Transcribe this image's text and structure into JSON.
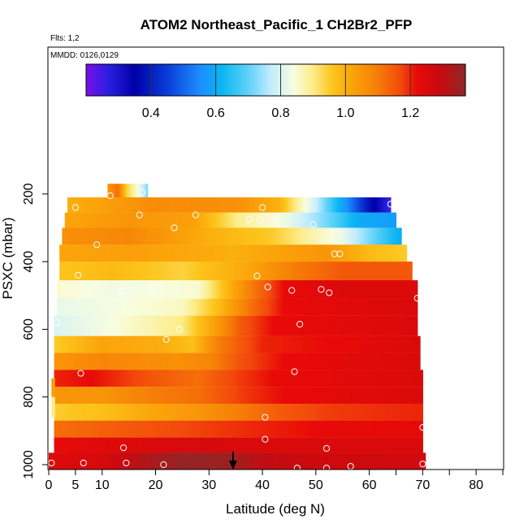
{
  "chart_data": {
    "type": "heatmap",
    "title": "ATOM2 Northeast_Pacific_1 CH2Br2_PFP",
    "flights_label": "Flts: 1,2",
    "dates_label": "MMDD: 0126,0129",
    "xlabel": "Latitude (deg N)",
    "ylabel": "PSXC (mbar)",
    "xlim": [
      0,
      85
    ],
    "ylim": [
      1000,
      100
    ],
    "x_ticks": [
      0,
      5,
      10,
      20,
      30,
      40,
      50,
      60,
      70,
      80
    ],
    "x_tick_labels": [
      "0",
      "5",
      "10",
      "20",
      "30",
      "40",
      "50",
      "60",
      "70",
      "80"
    ],
    "y_ticks": [
      200,
      400,
      600,
      800,
      1000
    ],
    "y_tick_labels": [
      "200",
      "400",
      "600",
      "800",
      "1000"
    ],
    "colorbar": {
      "range": [
        0.2,
        1.37
      ],
      "ticks": [
        0.4,
        0.6,
        0.8,
        1.0,
        1.2
      ],
      "tick_labels": [
        "0.4",
        "0.6",
        "0.8",
        "1.0",
        "1.2"
      ]
    },
    "arrow_latitude": 34.5,
    "layers": [
      {
        "p0": 170,
        "p1": 215,
        "x0": 11,
        "x1": 18.5,
        "stops": [
          [
            11,
            1.05
          ],
          [
            13,
            1.12
          ],
          [
            14.5,
            0.95
          ],
          [
            16.5,
            0.85
          ],
          [
            18.5,
            0.72
          ]
        ]
      },
      {
        "p0": 210,
        "p1": 255,
        "x0": 3.5,
        "x1": 64,
        "stops": [
          [
            3.5,
            1.0
          ],
          [
            20,
            1.07
          ],
          [
            35,
            1.06
          ],
          [
            43,
            1.0
          ],
          [
            50,
            0.78
          ],
          [
            56,
            0.55
          ],
          [
            60,
            0.38
          ],
          [
            64,
            0.25
          ]
        ]
      },
      {
        "p0": 255,
        "p1": 300,
        "x0": 3,
        "x1": 65,
        "stops": [
          [
            3,
            1.02
          ],
          [
            15,
            1.05
          ],
          [
            27,
            1.03
          ],
          [
            35,
            0.9
          ],
          [
            45,
            0.82
          ],
          [
            53,
            0.7
          ],
          [
            58,
            0.6
          ],
          [
            65,
            0.58
          ]
        ]
      },
      {
        "p0": 300,
        "p1": 350,
        "x0": 2.5,
        "x1": 66,
        "stops": [
          [
            2.5,
            1.06
          ],
          [
            15,
            1.08
          ],
          [
            30,
            1.0
          ],
          [
            42,
            0.95
          ],
          [
            55,
            0.82
          ],
          [
            61,
            0.7
          ],
          [
            66,
            0.6
          ]
        ]
      },
      {
        "p0": 350,
        "p1": 400,
        "x0": 2,
        "x1": 67,
        "stops": [
          [
            2,
            1.02
          ],
          [
            15,
            1.03
          ],
          [
            35,
            1.0
          ],
          [
            52,
            1.05
          ],
          [
            60,
            0.98
          ],
          [
            67,
            0.95
          ]
        ]
      },
      {
        "p0": 400,
        "p1": 455,
        "x0": 2,
        "x1": 68,
        "stops": [
          [
            2,
            0.96
          ],
          [
            12,
            0.98
          ],
          [
            25,
            0.94
          ],
          [
            38,
            1.02
          ],
          [
            46,
            1.1
          ],
          [
            55,
            1.15
          ],
          [
            68,
            1.15
          ]
        ]
      },
      {
        "p0": 455,
        "p1": 510,
        "x0": 1.5,
        "x1": 69,
        "stops": [
          [
            1.5,
            0.85
          ],
          [
            12,
            0.83
          ],
          [
            28,
            0.85
          ],
          [
            38,
            1.1
          ],
          [
            44,
            1.22
          ],
          [
            55,
            1.25
          ],
          [
            69,
            1.25
          ]
        ]
      },
      {
        "p0": 510,
        "p1": 560,
        "x0": 1.5,
        "x1": 69,
        "stops": [
          [
            1.5,
            0.82
          ],
          [
            15,
            0.84
          ],
          [
            25,
            0.86
          ],
          [
            32,
            0.98
          ],
          [
            38,
            1.12
          ],
          [
            44,
            1.22
          ],
          [
            69,
            1.25
          ]
        ]
      },
      {
        "p0": 560,
        "p1": 620,
        "x0": 1,
        "x1": 69,
        "stops": [
          [
            1,
            0.8
          ],
          [
            12,
            0.84
          ],
          [
            25,
            0.9
          ],
          [
            32,
            1.05
          ],
          [
            36,
            1.15
          ],
          [
            42,
            1.22
          ],
          [
            69,
            1.25
          ]
        ]
      },
      {
        "p0": 620,
        "p1": 670,
        "x0": 1,
        "x1": 69.5,
        "stops": [
          [
            1,
            0.95
          ],
          [
            10,
            1.02
          ],
          [
            22,
            1.0
          ],
          [
            27,
            0.97
          ],
          [
            32,
            1.1
          ],
          [
            40,
            1.2
          ],
          [
            69.5,
            1.25
          ]
        ]
      },
      {
        "p0": 670,
        "p1": 720,
        "x0": 1,
        "x1": 69.5,
        "stops": [
          [
            1,
            1.05
          ],
          [
            10,
            1.08
          ],
          [
            24,
            1.06
          ],
          [
            30,
            1.08
          ],
          [
            36,
            1.16
          ],
          [
            44,
            1.22
          ],
          [
            69.5,
            1.25
          ]
        ]
      },
      {
        "p0": 720,
        "p1": 770,
        "x0": 1,
        "x1": 70,
        "stops": [
          [
            1,
            1.2
          ],
          [
            8,
            1.22
          ],
          [
            20,
            1.15
          ],
          [
            28,
            1.12
          ],
          [
            34,
            1.17
          ],
          [
            42,
            1.22
          ],
          [
            70,
            1.25
          ]
        ]
      },
      {
        "p0": 770,
        "p1": 820,
        "x0": 1,
        "x1": 70,
        "stops": [
          [
            1,
            1.05
          ],
          [
            10,
            1.05
          ],
          [
            20,
            1.1
          ],
          [
            28,
            1.12
          ],
          [
            36,
            1.18
          ],
          [
            44,
            1.22
          ],
          [
            70,
            1.25
          ]
        ]
      },
      {
        "p0": 820,
        "p1": 870,
        "x0": 1,
        "x1": 70,
        "stops": [
          [
            1,
            0.95
          ],
          [
            10,
            0.97
          ],
          [
            20,
            1.02
          ],
          [
            28,
            1.05
          ],
          [
            36,
            1.1
          ],
          [
            44,
            1.15
          ],
          [
            52,
            1.18
          ],
          [
            70,
            1.2
          ]
        ]
      },
      {
        "p0": 870,
        "p1": 920,
        "x0": 1,
        "x1": 70,
        "stops": [
          [
            1,
            1.12
          ],
          [
            10,
            1.14
          ],
          [
            20,
            1.16
          ],
          [
            30,
            1.18
          ],
          [
            40,
            1.2
          ],
          [
            50,
            1.22
          ],
          [
            70,
            1.23
          ]
        ]
      },
      {
        "p0": 920,
        "p1": 965,
        "x0": 1,
        "x1": 70,
        "stops": [
          [
            1,
            1.22
          ],
          [
            10,
            1.24
          ],
          [
            20,
            1.25
          ],
          [
            30,
            1.26
          ],
          [
            40,
            1.25
          ],
          [
            50,
            1.25
          ],
          [
            70,
            1.25
          ]
        ]
      },
      {
        "p0": 965,
        "p1": 1015,
        "x0": 0,
        "x1": 70.5,
        "stops": [
          [
            0,
            1.24
          ],
          [
            10,
            1.26
          ],
          [
            18,
            1.32
          ],
          [
            25,
            1.36
          ],
          [
            34,
            1.35
          ],
          [
            40,
            1.3
          ],
          [
            50,
            1.28
          ],
          [
            70.5,
            1.27
          ]
        ]
      }
    ],
    "edge_strips": [
      {
        "p0": 745,
        "p1": 800,
        "x0": 0.5,
        "x1": 1.2,
        "value": 1.03
      },
      {
        "p0": 800,
        "p1": 860,
        "x0": 0.5,
        "x1": 1.2,
        "value": 0.9
      }
    ],
    "samples": [
      [
        11.5,
        205
      ],
      [
        17.5,
        195
      ],
      [
        5,
        240
      ],
      [
        64,
        230
      ],
      [
        40,
        240
      ],
      [
        17,
        262
      ],
      [
        27.5,
        262
      ],
      [
        23.5,
        300
      ],
      [
        37.5,
        275
      ],
      [
        39.5,
        278
      ],
      [
        49.5,
        290
      ],
      [
        9,
        350
      ],
      [
        53.5,
        377
      ],
      [
        54.5,
        377
      ],
      [
        5.5,
        440
      ],
      [
        39,
        442
      ],
      [
        41,
        475
      ],
      [
        19.5,
        475
      ],
      [
        13.5,
        488
      ],
      [
        45.5,
        485
      ],
      [
        51,
        482
      ],
      [
        52.5,
        492
      ],
      [
        69,
        508
      ],
      [
        1.5,
        580
      ],
      [
        47,
        585
      ],
      [
        24.5,
        600
      ],
      [
        22,
        630
      ],
      [
        6,
        730
      ],
      [
        46,
        725
      ],
      [
        40.5,
        860
      ],
      [
        40.5,
        925
      ],
      [
        70,
        890
      ],
      [
        14,
        950
      ],
      [
        52,
        952
      ],
      [
        0.5,
        995
      ],
      [
        6.5,
        995
      ],
      [
        14.5,
        995
      ],
      [
        21.5,
        1000
      ],
      [
        46.5,
        1010
      ],
      [
        52,
        1010
      ],
      [
        56.5,
        1005
      ],
      [
        70,
        998
      ]
    ]
  }
}
